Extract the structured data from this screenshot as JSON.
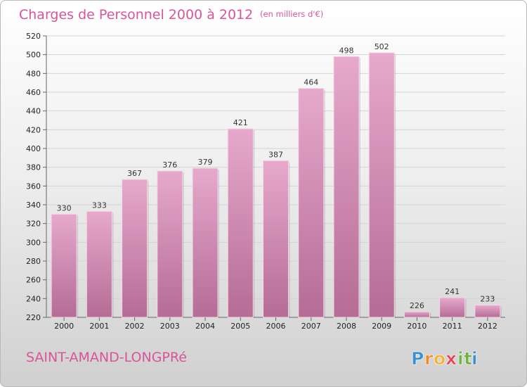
{
  "header": {
    "title": "Charges de Personnel 2000 à 2012",
    "subtitle": "(en milliers d'€)"
  },
  "footer": {
    "town": "SAINT-AMAND-LONGPRé",
    "logo_letters": [
      "P",
      "r",
      "o",
      "x",
      "i",
      "t",
      "i"
    ],
    "logo_colors": [
      "#3b8fd0",
      "#f08a24",
      "#f2b233",
      "#e8445a",
      "#6cb33f",
      "#6cb33f",
      "#3b8fd0"
    ]
  },
  "colors": {
    "bar_top": "#e6a9cc",
    "bar_bottom": "#b56c95",
    "accent": "#d9559a"
  },
  "chart_data": {
    "type": "bar",
    "categories": [
      "2000",
      "2001",
      "2002",
      "2003",
      "2004",
      "2005",
      "2006",
      "2007",
      "2008",
      "2009",
      "2010",
      "2011",
      "2012"
    ],
    "values": [
      330,
      333,
      367,
      376,
      379,
      421,
      387,
      464,
      498,
      502,
      226,
      241,
      233
    ],
    "ylim": [
      220,
      520
    ],
    "yticks": [
      220,
      240,
      260,
      280,
      300,
      320,
      340,
      360,
      380,
      400,
      420,
      440,
      460,
      480,
      500,
      520
    ],
    "grid": true,
    "title": "Charges de Personnel 2000 à 2012",
    "subtitle": "(en milliers d'€)",
    "xlabel": "",
    "ylabel": ""
  }
}
